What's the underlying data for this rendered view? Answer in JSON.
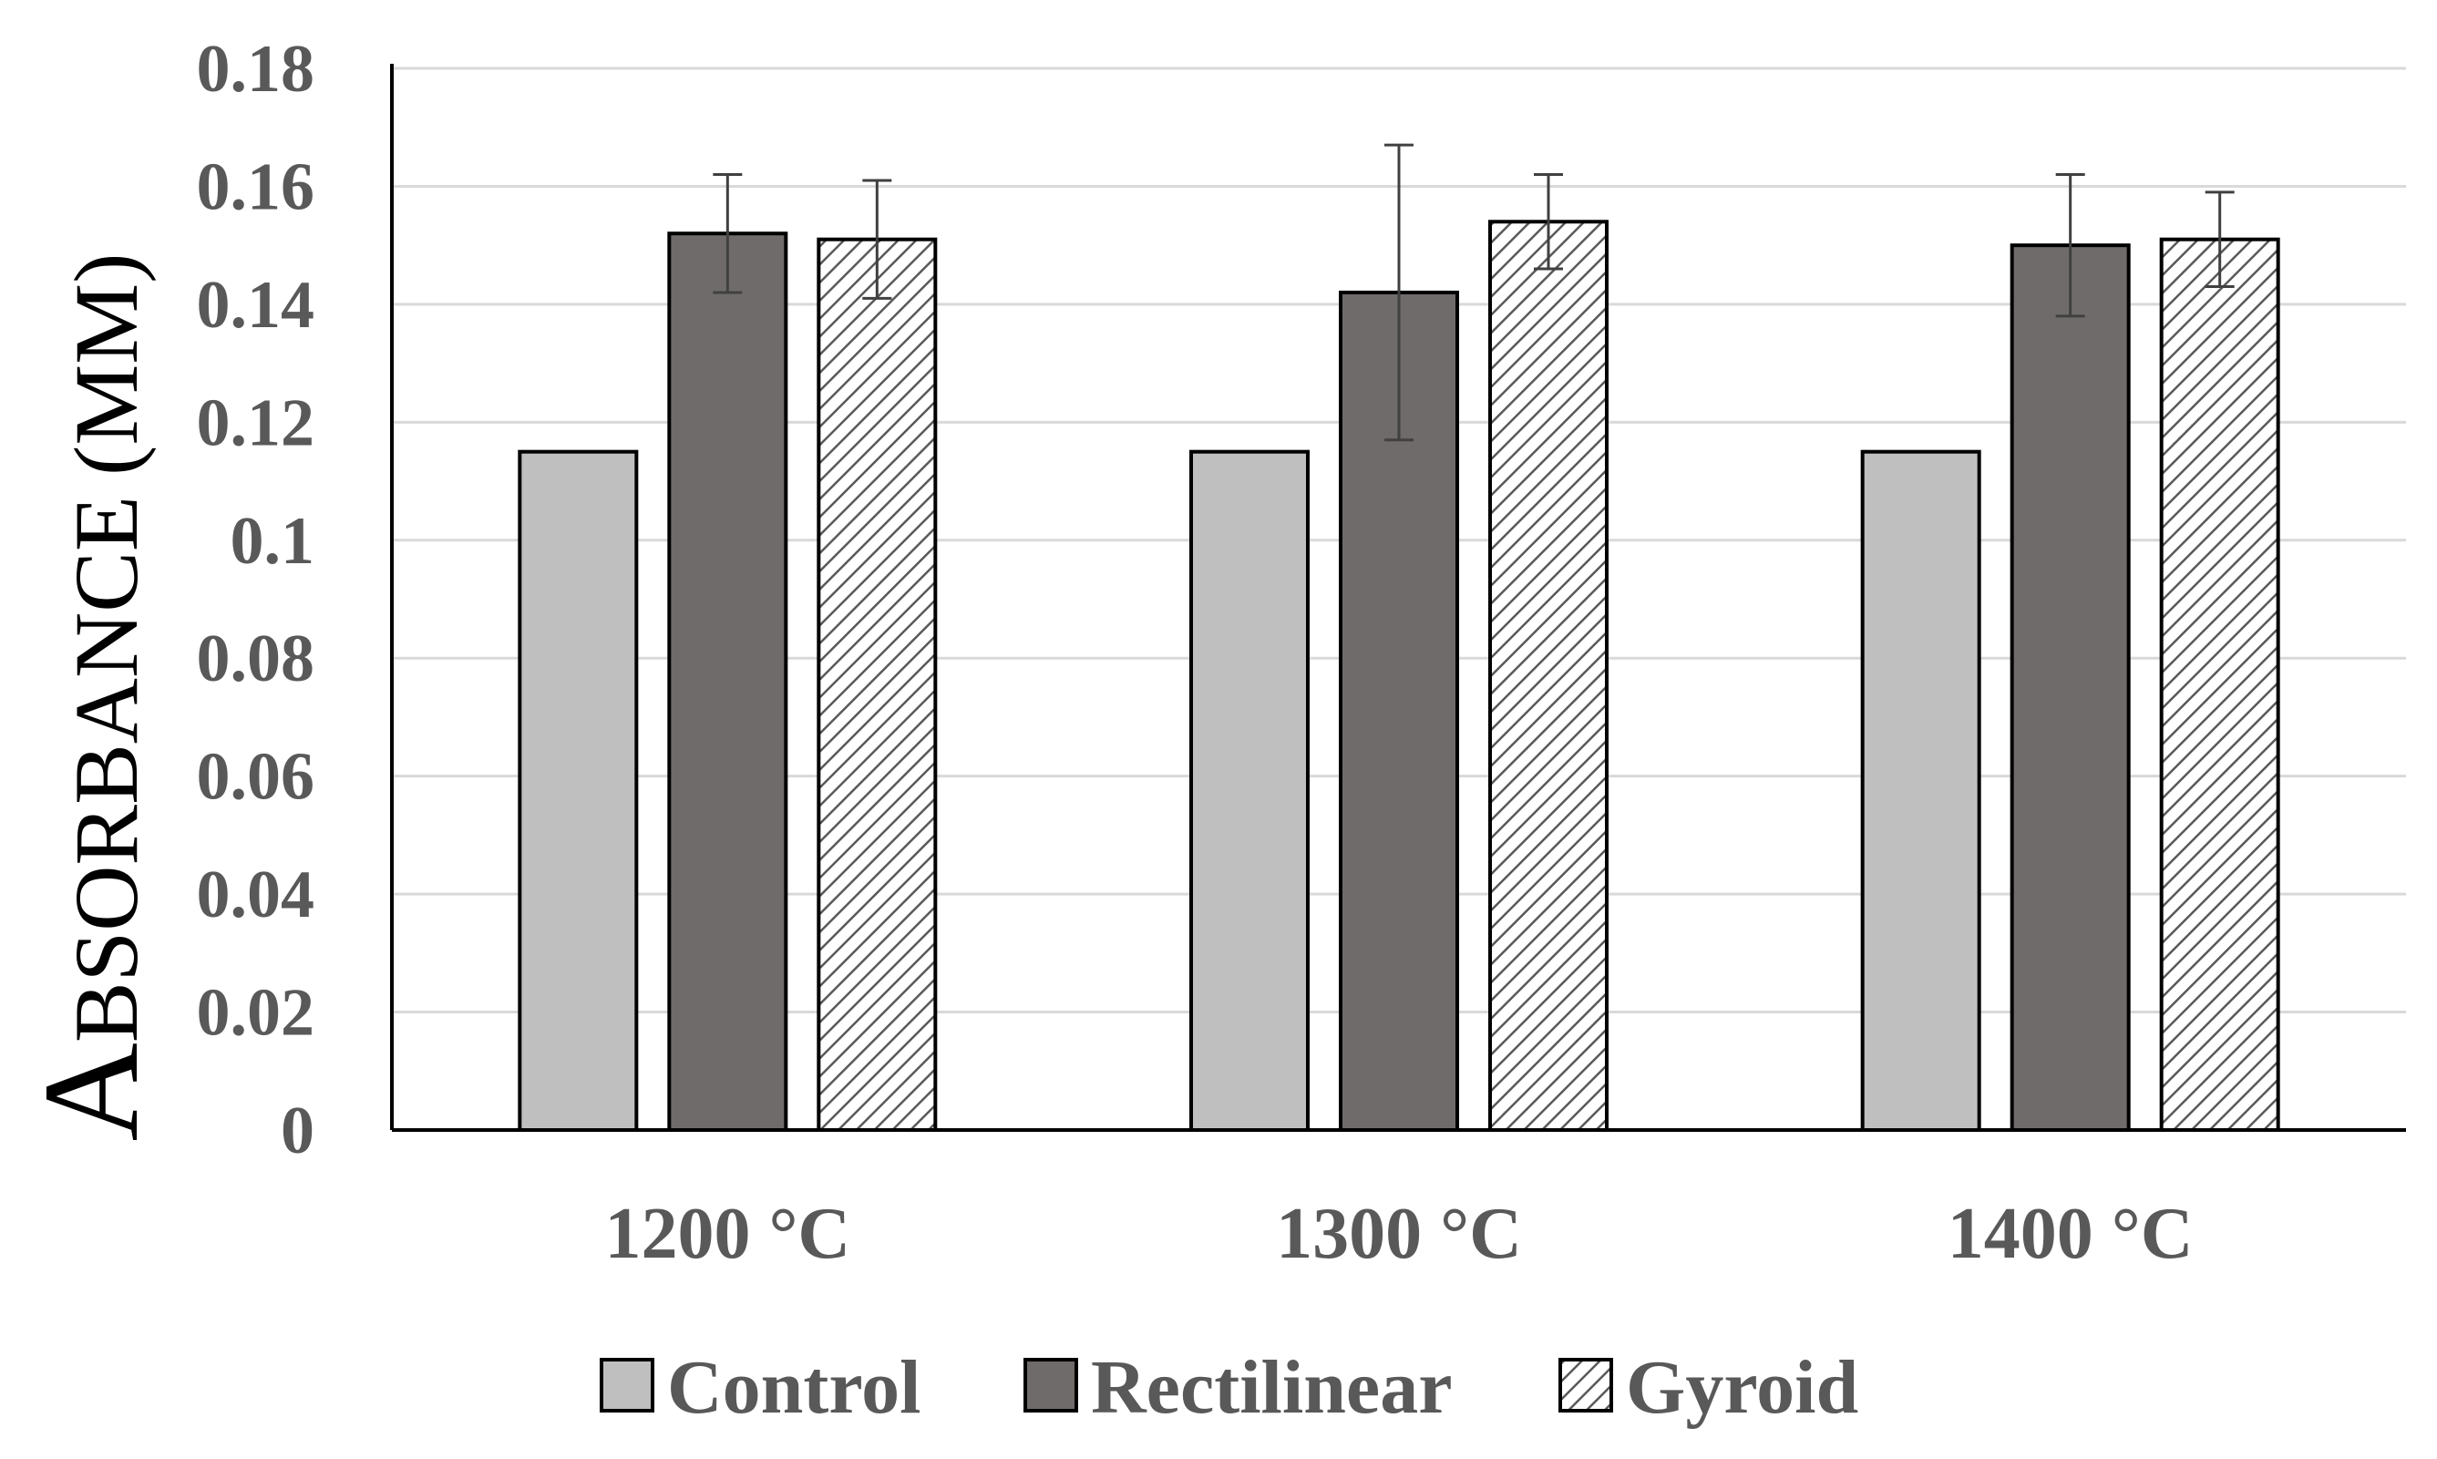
{
  "chart_data": {
    "type": "bar",
    "title": "",
    "xlabel": "",
    "ylabel": "Absorbance (MM)",
    "ylabel_initial": "A",
    "ylabel_rest": "BSORBANCE",
    "ylabel_unit": "(MM)",
    "ylim": [
      0,
      0.18
    ],
    "yticks": [
      "0",
      "0.02",
      "0.04",
      "0.06",
      "0.08",
      "0.1",
      "0.12",
      "0.14",
      "0.16",
      "0.18"
    ],
    "ytick_values": [
      0,
      0.02,
      0.04,
      0.06,
      0.08,
      0.1,
      0.12,
      0.14,
      0.16,
      0.18
    ],
    "grid": true,
    "legend_position": "bottom",
    "categories": [
      "1200 °C",
      "1300 °C",
      "1400 °C"
    ],
    "series": [
      {
        "name": "Control",
        "values": [
          0.115,
          0.115,
          0.115
        ],
        "errors": [
          null,
          null,
          null
        ],
        "fill": "#bfbfbf",
        "pattern": "solid"
      },
      {
        "name": "Rectilinear",
        "values": [
          0.152,
          0.142,
          0.15
        ],
        "errors": [
          0.01,
          0.025,
          0.012
        ],
        "fill": "#6f6b6a",
        "pattern": "solid"
      },
      {
        "name": "Gyroid",
        "values": [
          0.151,
          0.154,
          0.151
        ],
        "errors": [
          0.01,
          0.008,
          0.008
        ],
        "fill": "#ffffff",
        "pattern": "hatch"
      }
    ],
    "colors": {
      "axis": "#000000",
      "gridline": "#d9d9d9",
      "bar_stroke": "#000000",
      "hatch": "#595959",
      "text": "#595959"
    }
  }
}
